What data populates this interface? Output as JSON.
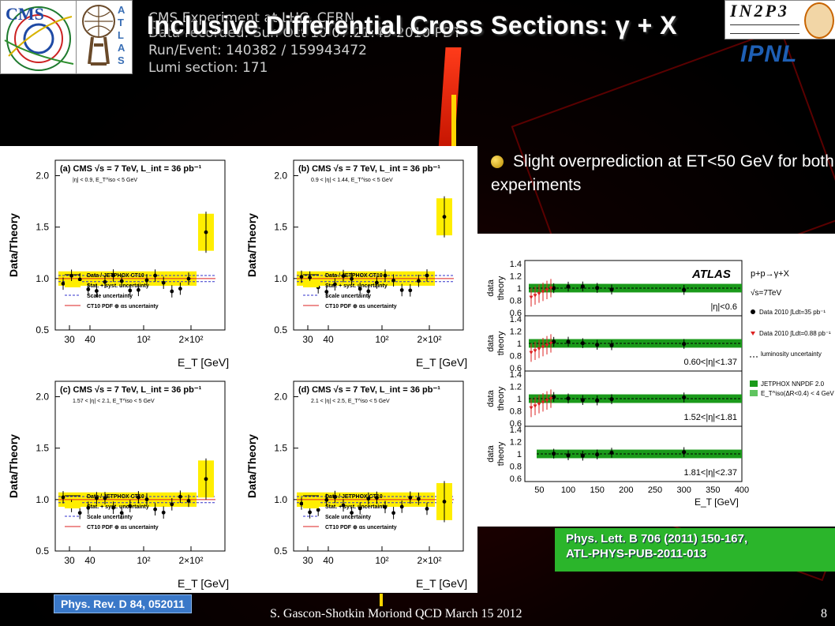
{
  "slide": {
    "title": "Inclusive Differential Cross Sections: γ + X",
    "bullet": "Slight overprediction at  ET<50 GeV for both experiments",
    "cms_reference": "Phys. Rev. D 84, 052011",
    "atlas_reference_line1": "Phys. Lett. B 706 (2011) 150-167,",
    "atlas_reference_line2": "ATL-PHYS-PUB-2011-013",
    "footer": "S. Gascon-Shotkin Moriond QCD March 15 2012",
    "page_number": "8"
  },
  "background_event_display": {
    "line1": "CMS Experiment at LHC, CERN",
    "line2": "Data recorded: Sun Oct 10 07:21:45 2010 PDT",
    "line3": "Run/Event: 140382 / 159943472",
    "line4": "Lumi section: 171"
  },
  "logos": {
    "cms": "CMS",
    "atlas": "ATLAS",
    "in2p3": "IN2P3",
    "ipnl": "IPNL"
  },
  "cms_panels": {
    "ylabel": "Data/Theory",
    "xlabel": "E_T [GeV]",
    "yticks": [
      "2.0",
      "1.5",
      "1.0",
      "0.5"
    ],
    "xticks": [
      "30",
      "40",
      "10²",
      "2×10²"
    ],
    "header": "CMS  √s = 7 TeV, L_int = 36 pb⁻¹",
    "legend": [
      "Data / JETPHOX CT10",
      "Stat. + syst. uncertainty",
      "Scale uncertainty",
      "CT10 PDF ⊕ αs uncertainty"
    ],
    "panels": [
      {
        "tag": "(a)",
        "cut": "|η| < 0.9, E_T^iso < 5 GeV",
        "legend": true
      },
      {
        "tag": "(b)",
        "cut": "0.9 < |η| < 1.44, E_T^iso < 5 GeV",
        "legend": true
      },
      {
        "tag": "(c)",
        "cut": "1.57 < |η| < 2.1, E_T^iso < 5 GeV",
        "legend": true
      },
      {
        "tag": "(d)",
        "cut": "2.1 < |η| < 2.5, E_T^iso < 5 GeV",
        "legend": true
      }
    ]
  },
  "atlas_plot": {
    "label": "ATLAS",
    "process": "p+p→γ+X",
    "energy": "√s=7TeV",
    "ylabel_top": "data",
    "ylabel_bottom": "theory",
    "yticks": [
      "1.4",
      "1.2",
      "1",
      "0.8",
      "0.6"
    ],
    "xticks": [
      "50",
      "100",
      "150",
      "200",
      "250",
      "300",
      "350",
      "400"
    ],
    "xlabel": "E_T [GeV]",
    "rows": [
      "|η|<0.6",
      "0.60<|η|<1.37",
      "1.52<|η|<1.81",
      "1.81<|η|<2.37"
    ],
    "legend_data2010a": "Data 2010 ∫Ldt=35 pb⁻¹",
    "legend_data2010b": "Data 2010 ∫Ldt=0.88 pb⁻¹",
    "legend_lumi": "luminosity uncertainty",
    "legend_jetphox": "JETPHOX NNPDF 2.0",
    "legend_iso": "E_T^iso(ΔR<0.4) < 4 GeV"
  }
}
